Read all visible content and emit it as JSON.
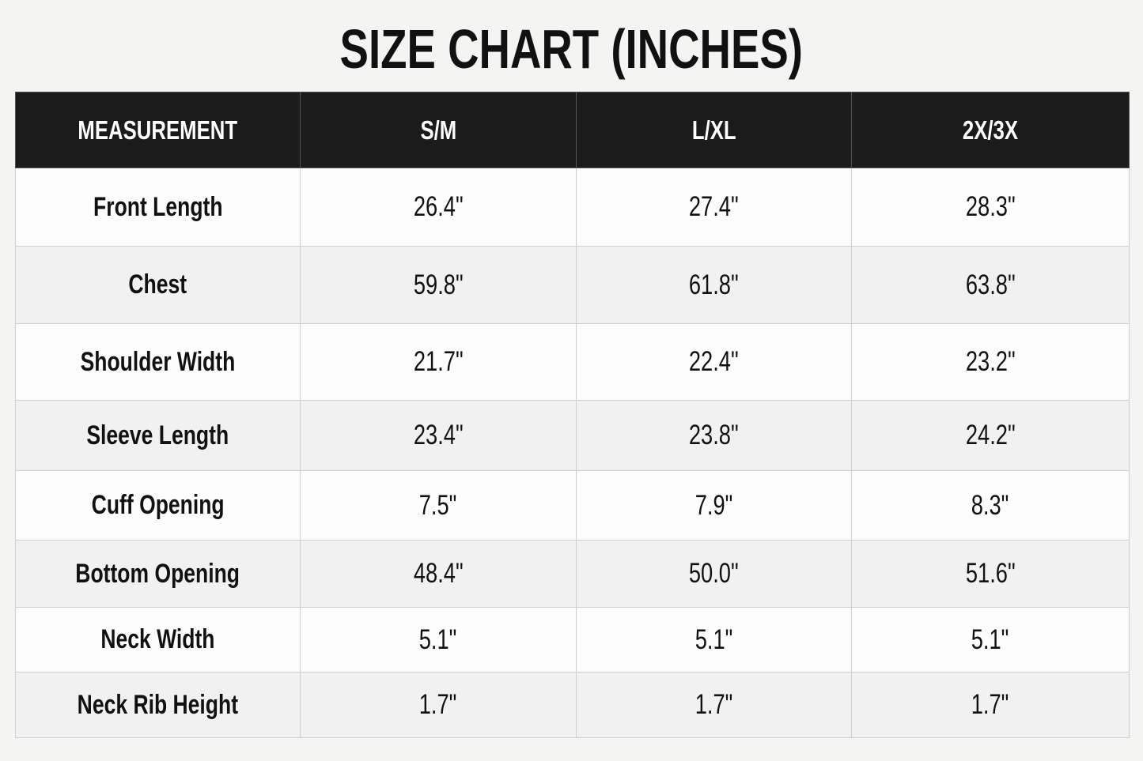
{
  "title": "SIZE CHART (INCHES)",
  "table": {
    "header": [
      "MEASUREMENT",
      "S/M",
      "L/XL",
      "2X/3X"
    ],
    "rows": [
      [
        "Front Length",
        "26.4\"",
        "27.4\"",
        "28.3\""
      ],
      [
        "Chest",
        "59.8\"",
        "61.8\"",
        "63.8\""
      ],
      [
        "Shoulder Width",
        "21.7\"",
        "22.4\"",
        "23.2\""
      ],
      [
        "Sleeve Length",
        "23.4\"",
        "23.8\"",
        "24.2\""
      ],
      [
        "Cuff Opening",
        "7.5\"",
        "7.9\"",
        "8.3\""
      ],
      [
        "Bottom Opening",
        "48.4\"",
        "50.0\"",
        "51.6\""
      ],
      [
        "Neck Width",
        "5.1\"",
        "5.1\"",
        "5.1\""
      ],
      [
        "Neck Rib Height",
        "1.7\"",
        "1.7\"",
        "1.7\""
      ]
    ]
  }
}
